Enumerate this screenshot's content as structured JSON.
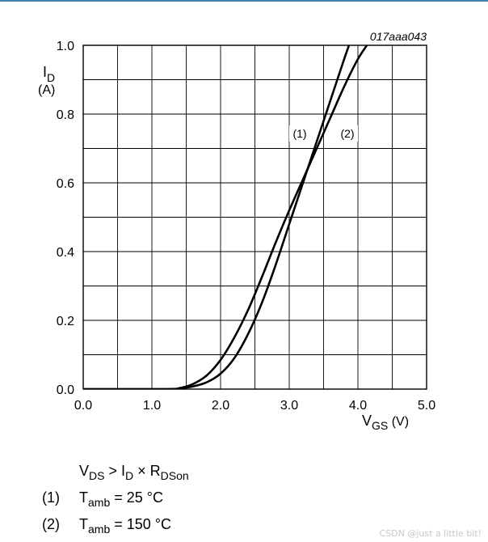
{
  "figure_code": "017aaa043",
  "chart_data": {
    "type": "line",
    "xlabel": "V",
    "xlabel_sub": "GS",
    "xlabel_unit": " (V)",
    "ylabel": "I",
    "ylabel_sub": "D",
    "ylabel_unit": "(A)",
    "xlim": [
      0,
      5
    ],
    "ylim": [
      0,
      1
    ],
    "xticks": [
      "0.0",
      "1.0",
      "2.0",
      "3.0",
      "4.0",
      "5.0"
    ],
    "yticks": [
      "0.0",
      "0.2",
      "0.4",
      "0.6",
      "0.8",
      "1.0"
    ],
    "grid": true,
    "series": [
      {
        "name": "(1)",
        "color": "#000000",
        "x": [
          0.0,
          1.2,
          1.4,
          1.6,
          1.8,
          2.0,
          2.2,
          2.4,
          2.6,
          2.8,
          3.0,
          3.2,
          3.4,
          3.6,
          3.8,
          3.87
        ],
        "y": [
          0.0,
          0.0,
          0.002,
          0.008,
          0.02,
          0.045,
          0.09,
          0.16,
          0.25,
          0.36,
          0.48,
          0.6,
          0.72,
          0.84,
          0.96,
          1.0
        ]
      },
      {
        "name": "(2)",
        "color": "#000000",
        "x": [
          0.0,
          1.2,
          1.4,
          1.6,
          1.8,
          2.0,
          2.2,
          2.4,
          2.6,
          2.8,
          3.0,
          3.2,
          3.4,
          3.6,
          3.8,
          4.0,
          4.2
        ],
        "y": [
          0.0,
          0.0,
          0.003,
          0.015,
          0.04,
          0.085,
          0.15,
          0.23,
          0.325,
          0.425,
          0.52,
          0.61,
          0.7,
          0.79,
          0.88,
          0.96,
          1.02
        ]
      }
    ]
  },
  "notes": {
    "condition": {
      "a": "V",
      "a_sub": "DS",
      "b": " > I",
      "b_sub": "D",
      "c": " × R",
      "c_sub": "DSon"
    },
    "legend": [
      {
        "num": "(1)",
        "label": "T",
        "sub": "amb",
        "value": " = 25 °C"
      },
      {
        "num": "(2)",
        "label": "T",
        "sub": "amb",
        "value": " = 150 °C"
      }
    ]
  },
  "watermark": "CSDN @just a little bit!"
}
